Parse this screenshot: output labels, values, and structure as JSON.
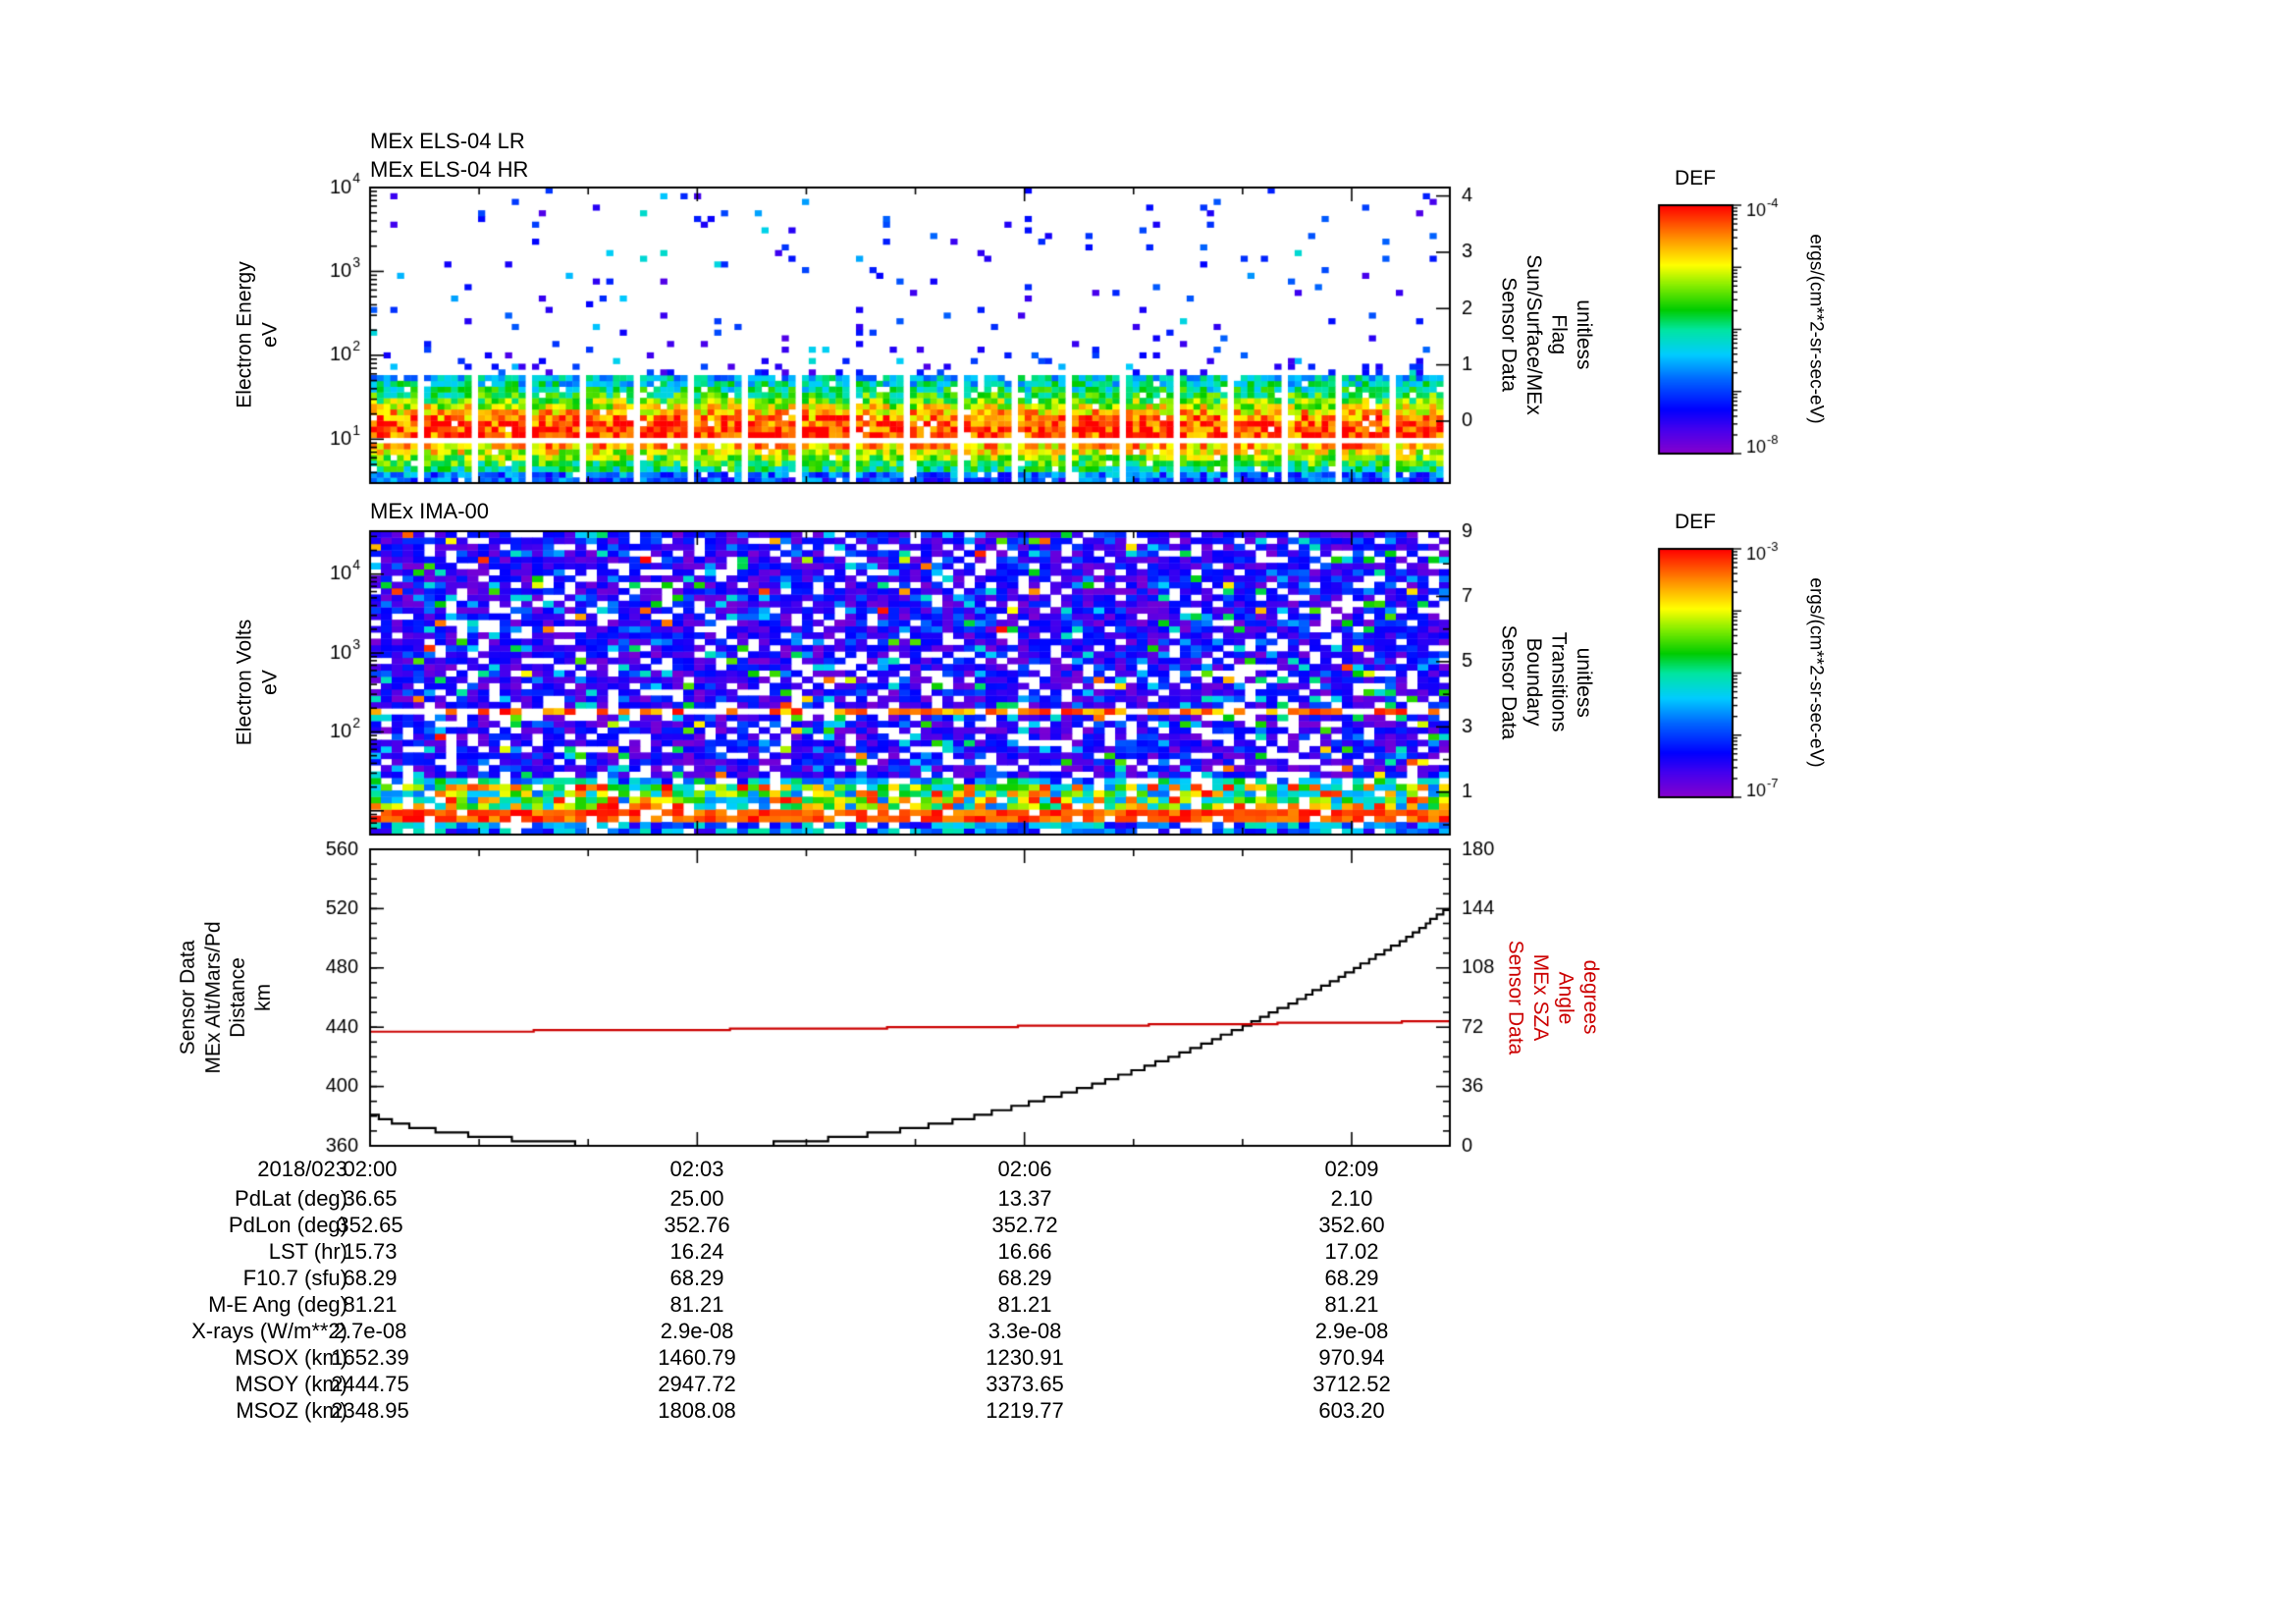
{
  "meta": {
    "date_label": "2018/023"
  },
  "panels": {
    "els": {
      "title_lines": [
        "MEx ELS-04 LR",
        "MEx ELS-04 HR"
      ],
      "y_label_lines": [
        "Electron Energy",
        "eV"
      ],
      "right_label_lines": [
        "Sensor Data",
        "Sun/Surface/MEx",
        "Flag",
        "unitless"
      ]
    },
    "ima": {
      "title_lines": [
        "MEx IMA-00"
      ],
      "y_label_lines": [
        "Electron Volts",
        "eV"
      ],
      "right_label_lines": [
        "Sensor Data",
        "Boundary",
        "Transitions",
        "unitless"
      ]
    },
    "alt": {
      "y_label_lines": [
        "Sensor Data",
        "MEx Alt/Mars/Pd",
        "Distance",
        "km"
      ],
      "right_label_lines": [
        "Sensor Data",
        "MEx SZA",
        "Angle",
        "degrees"
      ],
      "right_label_color": "#cc0000"
    }
  },
  "colorbars": [
    {
      "title": "DEF",
      "units": "ergs/(cm**2-sr-sec-eV)",
      "top_exp": "-4",
      "bottom_exp": "-8"
    },
    {
      "title": "DEF",
      "units": "ergs/(cm**2-sr-sec-eV)",
      "top_exp": "-3",
      "bottom_exp": "-7"
    }
  ],
  "colormap": {
    "stops": [
      [
        0.0,
        "#8800cc"
      ],
      [
        0.1,
        "#4400ee"
      ],
      [
        0.18,
        "#0000ff"
      ],
      [
        0.3,
        "#0066ff"
      ],
      [
        0.4,
        "#00ccff"
      ],
      [
        0.5,
        "#00e6a0"
      ],
      [
        0.58,
        "#00cc00"
      ],
      [
        0.68,
        "#88ee00"
      ],
      [
        0.76,
        "#ffff00"
      ],
      [
        0.86,
        "#ff9900"
      ],
      [
        1.0,
        "#ff0000"
      ]
    ]
  },
  "table": {
    "rows": [
      {
        "label": "2018/023",
        "values": [
          "02:00",
          "02:03",
          "02:06",
          "02:09"
        ]
      },
      {
        "label": "PdLat (deg)",
        "values": [
          "36.65",
          "25.00",
          "13.37",
          "2.10"
        ]
      },
      {
        "label": "PdLon (deg)",
        "values": [
          "352.65",
          "352.76",
          "352.72",
          "352.60"
        ]
      },
      {
        "label": "LST (hr)",
        "values": [
          "15.73",
          "16.24",
          "16.66",
          "17.02"
        ]
      },
      {
        "label": "F10.7 (sfu)",
        "values": [
          "68.29",
          "68.29",
          "68.29",
          "68.29"
        ]
      },
      {
        "label": "M-E Ang (deg)",
        "values": [
          "81.21",
          "81.21",
          "81.21",
          "81.21"
        ]
      },
      {
        "label": "X-rays (W/m**2)",
        "values": [
          "2.7e-08",
          "2.9e-08",
          "3.3e-08",
          "2.9e-08"
        ]
      },
      {
        "label": "MSOX (km)",
        "values": [
          "1652.39",
          "1460.79",
          "1230.91",
          "970.94"
        ]
      },
      {
        "label": "MSOY (km)",
        "values": [
          "2444.75",
          "2947.72",
          "3373.65",
          "3712.52"
        ]
      },
      {
        "label": "MSOZ (km)",
        "values": [
          "2348.95",
          "1808.08",
          "1219.77",
          "603.20"
        ]
      }
    ]
  },
  "chart_data": [
    {
      "type": "heatmap",
      "name": "els_electron_spectrogram",
      "title": "MEx ELS-04 LR / MEx ELS-04 HR",
      "x_axis": {
        "start": "2018/023 02:00",
        "tick_labels": [
          "02:00",
          "02:03",
          "02:06",
          "02:09"
        ],
        "range_minutes": [
          0,
          9.9
        ]
      },
      "y_axis": {
        "label": "Electron Energy eV",
        "scale": "log",
        "range": [
          3,
          10000
        ],
        "labeled_tick_exps": [
          "1",
          "2",
          "3",
          "4"
        ]
      },
      "right_axis": {
        "label": "Sensor Data Sun/Surface/MEx Flag unitless",
        "range": [
          -1.1,
          4.15
        ],
        "labeled_ticks": [
          0,
          1,
          2,
          3,
          4
        ]
      },
      "colorbar_units": "ergs/(cm**2-sr-sec-eV)",
      "colorbar_range": [
        "1e-8",
        "1e-4"
      ],
      "description": "Intense electron differential energy flux band between ~4 and ~60 eV (green/yellow with red flecks), thin white data-gap line near 9 eV, periodic vertical white telemetry gaps, sparse blue/cyan specks from 60 eV up to 10 keV.",
      "gen": {
        "cols": 160,
        "rows": 52,
        "gap_every": 8,
        "band_center_eV": 13,
        "band_top_eV": 55,
        "white_line_eV": 9.3
      }
    },
    {
      "type": "heatmap",
      "name": "ima_ion_spectrogram",
      "title": "MEx IMA-00",
      "x_axis": {
        "start": "2018/023 02:00",
        "tick_labels": [
          "02:00",
          "02:03",
          "02:06",
          "02:09"
        ],
        "range_minutes": [
          0,
          9.9
        ]
      },
      "y_axis": {
        "label": "Electron Volts eV",
        "scale": "log",
        "range": [
          5,
          35000
        ],
        "labeled_tick_exps": [
          "2",
          "3",
          "4"
        ]
      },
      "right_axis": {
        "label": "Sensor Data Boundary Transitions unitless",
        "range": [
          -0.3,
          9
        ],
        "labeled_ticks": [
          1,
          3,
          5,
          7,
          9
        ],
        "minor_ticks": [
          0,
          2,
          4,
          6,
          8
        ]
      },
      "colorbar_units": "ergs/(cm**2-sr-sec-eV)",
      "colorbar_range": [
        "1e-7",
        "1e-3"
      ],
      "description": "Dense mosaic of low-intensity purple/blue ion counts with white dropouts over the full energy range; bright multicolor band below ~20 eV including a near-continuous red streak near 8 eV; broken dark-red streak near 170 eV; occasional cyan/green cells.",
      "gen": {
        "cols": 100,
        "rows": 48,
        "red_row_eV": 8,
        "bright_band_max_eV": 20,
        "mid_red_line_eV": 170
      }
    },
    {
      "type": "line",
      "name": "altitude_and_sza",
      "x_axis": {
        "tick_minutes": [
          0,
          3,
          6,
          9
        ],
        "tick_labels": [
          "02:00",
          "02:03",
          "02:06",
          "02:09"
        ],
        "range_minutes": [
          0,
          9.9
        ]
      },
      "left_axis": {
        "label": "Sensor Data MEx Alt/Mars/Pd Distance km",
        "range": [
          360,
          560
        ],
        "ticks": [
          360,
          400,
          440,
          480,
          520,
          560
        ]
      },
      "right_axis": {
        "label": "Sensor Data MEx SZA Angle degrees",
        "range": [
          0,
          180
        ],
        "ticks": [
          0,
          36,
          72,
          108,
          144,
          180
        ]
      },
      "series": [
        {
          "name": "MEx altitude (km)",
          "color": "#000000",
          "axis": "left",
          "step_quant": 3,
          "points": [
            [
              0,
              381
            ],
            [
              0.3,
              374
            ],
            [
              0.7,
              369
            ],
            [
              1.2,
              365
            ],
            [
              1.7,
              362
            ],
            [
              2.2,
              360.5
            ],
            [
              2.7,
              360
            ],
            [
              3.2,
              360
            ],
            [
              3.6,
              361
            ],
            [
              4,
              363
            ],
            [
              4.5,
              367
            ],
            [
              5,
              372
            ],
            [
              5.5,
              379
            ],
            [
              6,
              388
            ],
            [
              6.5,
              398
            ],
            [
              7,
              410
            ],
            [
              7.5,
              424
            ],
            [
              8,
              440
            ],
            [
              8.5,
              458
            ],
            [
              9,
              478
            ],
            [
              9.5,
              500
            ],
            [
              9.9,
              521
            ]
          ]
        },
        {
          "name": "MEx solar zenith angle (deg)",
          "color": "#cc0000",
          "axis": "right",
          "step_quant": 0.9,
          "points": [
            [
              0,
              69
            ],
            [
              2,
              70
            ],
            [
              4,
              71
            ],
            [
              6,
              72.5
            ],
            [
              8,
              74
            ],
            [
              9.9,
              75.5
            ]
          ]
        }
      ]
    }
  ]
}
